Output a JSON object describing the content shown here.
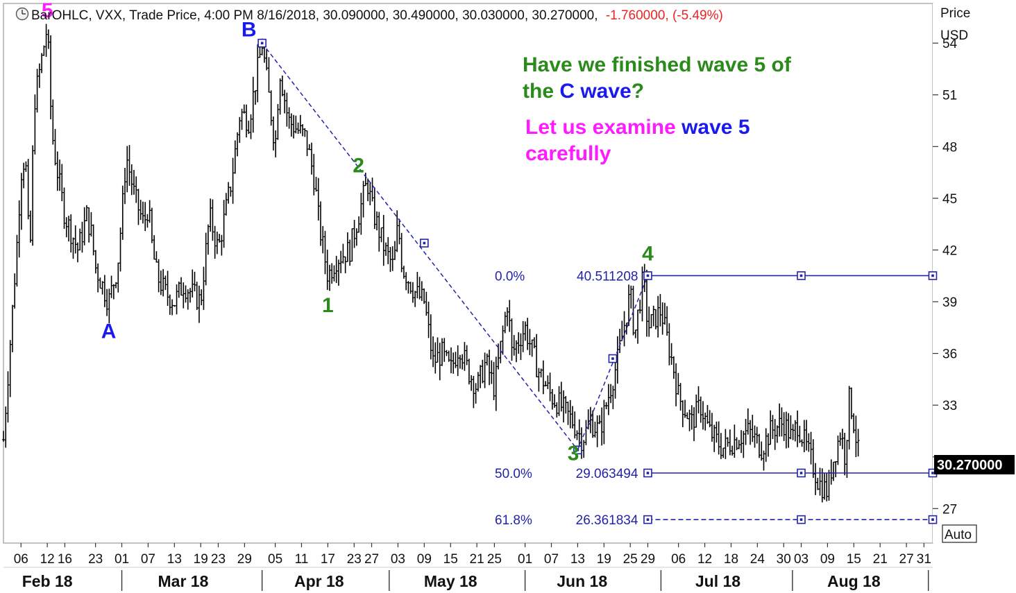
{
  "header": {
    "prefix": "BarOHLC, VXX, Trade Price, 4:00 PM 8/16/2018, 30.090000, 30.490000, 30.030000, 30.270000,",
    "change": "-1.760000, (-5.49%)",
    "clock_icon": "clock-icon"
  },
  "axis": {
    "price_label": "Price",
    "currency_label": "USD",
    "last_price": "30.270000",
    "auto_button": "Auto"
  },
  "colors": {
    "green": "#2a8a1a",
    "blue": "#1a1aee",
    "magenta": "#ff1aff",
    "navy": "#2222aa",
    "red": "#ee2222"
  },
  "annotations": {
    "q_line1": "Have we finished wave 5 of",
    "q_line2_a": "the ",
    "q_line2_b": "C wave",
    "q_line2_c": "?",
    "e_line1_a": "Let us examine ",
    "e_line1_b": "wave 5",
    "e_line2": "carefully"
  },
  "chart_data": {
    "type": "ohlc",
    "symbol": "VXX",
    "y_ticks": [
      27,
      30,
      33,
      36,
      39,
      42,
      45,
      48,
      51,
      54
    ],
    "y_tick_labels": [
      "27",
      "33",
      "36",
      "39",
      "42",
      "45",
      "48",
      "51",
      "54"
    ],
    "ylim": [
      25.0,
      56.3
    ],
    "x_tick_labels": [
      "06",
      "12",
      "16",
      "23",
      "01",
      "07",
      "13",
      "19",
      "23",
      "29",
      "05",
      "11",
      "17",
      "23",
      "27",
      "03",
      "09",
      "15",
      "21",
      "25",
      "01",
      "07",
      "13",
      "19",
      "25",
      "29",
      "06",
      "12",
      "18",
      "24",
      "30",
      "03",
      "09",
      "15",
      "21",
      "27",
      "31"
    ],
    "x_tick_dates": [
      "2018-02-06",
      "2018-02-12",
      "2018-02-16",
      "2018-02-23",
      "2018-03-01",
      "2018-03-07",
      "2018-03-13",
      "2018-03-19",
      "2018-03-23",
      "2018-03-29",
      "2018-04-05",
      "2018-04-11",
      "2018-04-17",
      "2018-04-23",
      "2018-04-27",
      "2018-05-03",
      "2018-05-09",
      "2018-05-15",
      "2018-05-21",
      "2018-05-25",
      "2018-06-01",
      "2018-06-07",
      "2018-06-13",
      "2018-06-19",
      "2018-06-25",
      "2018-06-29",
      "2018-07-06",
      "2018-07-12",
      "2018-07-18",
      "2018-07-24",
      "2018-07-30",
      "2018-08-03",
      "2018-08-09",
      "2018-08-15",
      "2018-08-21",
      "2018-08-27",
      "2018-08-31"
    ],
    "months": [
      {
        "label": "Feb 18",
        "date": "2018-02-12"
      },
      {
        "label": "Mar 18",
        "date": "2018-03-15"
      },
      {
        "label": "Apr 18",
        "date": "2018-04-15"
      },
      {
        "label": "May 18",
        "date": "2018-05-15"
      },
      {
        "label": "Jun 18",
        "date": "2018-06-14"
      },
      {
        "label": "Jul 18",
        "date": "2018-07-15"
      },
      {
        "label": "Aug 18",
        "date": "2018-08-15"
      }
    ],
    "month_separators": [
      "2018-03-01",
      "2018-04-02",
      "2018-05-01",
      "2018-06-01",
      "2018-07-02",
      "2018-08-01",
      "2018-09-01"
    ],
    "price_path": [
      {
        "date": "2018-02-02",
        "price": 31.0
      },
      {
        "date": "2018-02-05",
        "price": 42.0
      },
      {
        "date": "2018-02-06",
        "price": 46.5
      },
      {
        "date": "2018-02-07",
        "price": 47.5
      },
      {
        "date": "2018-02-08",
        "price": 41.0
      },
      {
        "date": "2018-02-09",
        "price": 50.5
      },
      {
        "date": "2018-02-12",
        "price": 55.0
      },
      {
        "date": "2018-02-13",
        "price": 49.0
      },
      {
        "date": "2018-02-14",
        "price": 47.0
      },
      {
        "date": "2018-02-16",
        "price": 44.0
      },
      {
        "date": "2018-02-19",
        "price": 42.0
      },
      {
        "date": "2018-02-20",
        "price": 43.0
      },
      {
        "date": "2018-02-21",
        "price": 44.0
      },
      {
        "date": "2018-02-22",
        "price": 43.0
      },
      {
        "date": "2018-02-23",
        "price": 41.0
      },
      {
        "date": "2018-02-26",
        "price": 39.0
      },
      {
        "date": "2018-02-28",
        "price": 41.0
      },
      {
        "date": "2018-03-01",
        "price": 44.0
      },
      {
        "date": "2018-03-02",
        "price": 47.5
      },
      {
        "date": "2018-03-04",
        "price": 45.0
      },
      {
        "date": "2018-03-06",
        "price": 43.5
      },
      {
        "date": "2018-03-07",
        "price": 44.5
      },
      {
        "date": "2018-03-08",
        "price": 42.0
      },
      {
        "date": "2018-03-09",
        "price": 40.5
      },
      {
        "date": "2018-03-11",
        "price": 39.5
      },
      {
        "date": "2018-03-13",
        "price": 39.0
      },
      {
        "date": "2018-03-15",
        "price": 40.0
      },
      {
        "date": "2018-03-19",
        "price": 39.0
      },
      {
        "date": "2018-03-21",
        "price": 44.0
      },
      {
        "date": "2018-03-23",
        "price": 42.0
      },
      {
        "date": "2018-03-26",
        "price": 46.0
      },
      {
        "date": "2018-03-28",
        "price": 50.0
      },
      {
        "date": "2018-03-30",
        "price": 49.5
      },
      {
        "date": "2018-04-02",
        "price": 54.0
      },
      {
        "date": "2018-04-03",
        "price": 52.0
      },
      {
        "date": "2018-04-05",
        "price": 48.0
      },
      {
        "date": "2018-04-06",
        "price": 52.5
      },
      {
        "date": "2018-04-08",
        "price": 49.5
      },
      {
        "date": "2018-04-10",
        "price": 49.0
      },
      {
        "date": "2018-04-12",
        "price": 48.5
      },
      {
        "date": "2018-04-14",
        "price": 46.0
      },
      {
        "date": "2018-04-15",
        "price": 43.5
      },
      {
        "date": "2018-04-17",
        "price": 40.5
      },
      {
        "date": "2018-04-19",
        "price": 41.5
      },
      {
        "date": "2018-04-22",
        "price": 42.0
      },
      {
        "date": "2018-04-24",
        "price": 44.0
      },
      {
        "date": "2018-04-26",
        "price": 46.0
      },
      {
        "date": "2018-04-27",
        "price": 44.5
      },
      {
        "date": "2018-04-30",
        "price": 42.0
      },
      {
        "date": "2018-05-02",
        "price": 41.0
      },
      {
        "date": "2018-05-03",
        "price": 43.5
      },
      {
        "date": "2018-05-04",
        "price": 41.0
      },
      {
        "date": "2018-05-07",
        "price": 39.5
      },
      {
        "date": "2018-05-09",
        "price": 39.0
      },
      {
        "date": "2018-05-11",
        "price": 35.5
      },
      {
        "date": "2018-05-13",
        "price": 36.0
      },
      {
        "date": "2018-05-15",
        "price": 35.0
      },
      {
        "date": "2018-05-17",
        "price": 36.5
      },
      {
        "date": "2018-05-19",
        "price": 35.0
      },
      {
        "date": "2018-05-21",
        "price": 34.0
      },
      {
        "date": "2018-05-23",
        "price": 35.5
      },
      {
        "date": "2018-05-25",
        "price": 34.0
      },
      {
        "date": "2018-05-28",
        "price": 39.0
      },
      {
        "date": "2018-05-29",
        "price": 36.0
      },
      {
        "date": "2018-06-01",
        "price": 37.5
      },
      {
        "date": "2018-06-04",
        "price": 35.0
      },
      {
        "date": "2018-06-07",
        "price": 33.5
      },
      {
        "date": "2018-06-09",
        "price": 33.0
      },
      {
        "date": "2018-06-12",
        "price": 32.0
      },
      {
        "date": "2018-06-14",
        "price": 31.0
      },
      {
        "date": "2018-06-16",
        "price": 32.0
      },
      {
        "date": "2018-06-18",
        "price": 31.5
      },
      {
        "date": "2018-06-20",
        "price": 33.5
      },
      {
        "date": "2018-06-22",
        "price": 35.5
      },
      {
        "date": "2018-06-25",
        "price": 39.5
      },
      {
        "date": "2018-06-26",
        "price": 37.0
      },
      {
        "date": "2018-06-28",
        "price": 40.5
      },
      {
        "date": "2018-06-29",
        "price": 37.5
      },
      {
        "date": "2018-07-02",
        "price": 38.5
      },
      {
        "date": "2018-07-05",
        "price": 35.0
      },
      {
        "date": "2018-07-06",
        "price": 33.5
      },
      {
        "date": "2018-07-09",
        "price": 32.0
      },
      {
        "date": "2018-07-11",
        "price": 33.0
      },
      {
        "date": "2018-07-13",
        "price": 31.5
      },
      {
        "date": "2018-07-16",
        "price": 30.5
      },
      {
        "date": "2018-07-19",
        "price": 31.0
      },
      {
        "date": "2018-07-22",
        "price": 31.5
      },
      {
        "date": "2018-07-25",
        "price": 30.5
      },
      {
        "date": "2018-07-27",
        "price": 31.5
      },
      {
        "date": "2018-07-30",
        "price": 32.0
      },
      {
        "date": "2018-08-01",
        "price": 31.0
      },
      {
        "date": "2018-08-02",
        "price": 32.0
      },
      {
        "date": "2018-08-05",
        "price": 30.0
      },
      {
        "date": "2018-08-07",
        "price": 28.5
      },
      {
        "date": "2018-08-09",
        "price": 28.0
      },
      {
        "date": "2018-08-10",
        "price": 29.5
      },
      {
        "date": "2018-08-12",
        "price": 31.5
      },
      {
        "date": "2018-08-13",
        "price": 30.0
      },
      {
        "date": "2018-08-14",
        "price": 33.5
      },
      {
        "date": "2018-08-15",
        "price": 32.0
      },
      {
        "date": "2018-08-16",
        "price": 30.27
      }
    ],
    "wave_labels": [
      {
        "text": "5",
        "date": "2018-02-12",
        "price": 55.9,
        "color": "magenta"
      },
      {
        "text": "A",
        "date": "2018-02-26",
        "price": 37.3,
        "color": "blue"
      },
      {
        "text": "B",
        "date": "2018-03-30",
        "price": 54.8,
        "color": "blue"
      },
      {
        "text": "1",
        "date": "2018-04-17",
        "price": 38.8,
        "color": "green"
      },
      {
        "text": "2",
        "date": "2018-04-24",
        "price": 46.9,
        "color": "green"
      },
      {
        "text": "3",
        "date": "2018-06-12",
        "price": 30.2,
        "color": "green"
      },
      {
        "text": "4",
        "date": "2018-06-29",
        "price": 41.8,
        "color": "green"
      }
    ],
    "trendline": {
      "start": {
        "date": "2018-04-02",
        "price": 54.0
      },
      "mid": {
        "date": "2018-05-09",
        "price": 42.4
      },
      "end": {
        "date": "2018-06-13",
        "price": 30.4
      }
    },
    "leg4": {
      "start": {
        "date": "2018-06-13",
        "price": 30.4
      },
      "mid": {
        "date": "2018-06-21",
        "price": 35.7
      },
      "end": {
        "date": "2018-06-29",
        "price": 40.511208
      }
    },
    "fib_levels": [
      {
        "pct": "0.0%",
        "value": "40.511208",
        "price": 40.511208,
        "style": "solid"
      },
      {
        "pct": "50.0%",
        "value": "29.063494",
        "price": 29.063494,
        "style": "solid"
      },
      {
        "pct": "61.8%",
        "value": "26.361834",
        "price": 26.361834,
        "style": "dashed"
      }
    ],
    "fib_start_date": "2018-06-29",
    "fib_mid_date": "2018-08-03"
  }
}
